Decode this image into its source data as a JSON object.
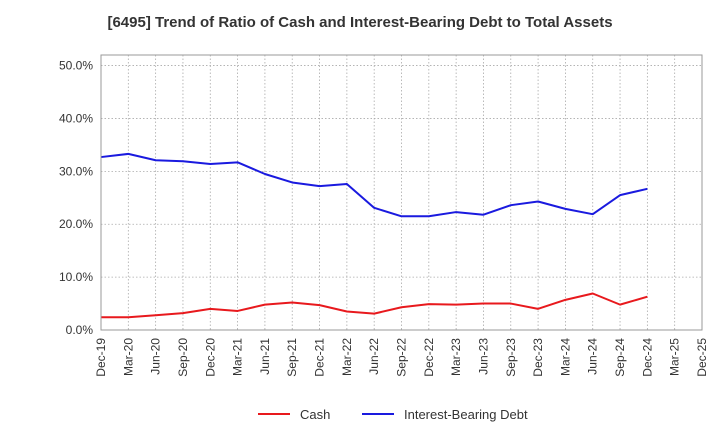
{
  "chart_data": {
    "type": "line",
    "title": "[6495]  Trend of Ratio of Cash and Interest-Bearing Debt to Total Assets",
    "xlabel": "",
    "ylabel": "",
    "ylim": [
      0,
      52
    ],
    "yticks": [
      0,
      10,
      20,
      30,
      40,
      50
    ],
    "ytick_labels": [
      "0.0%",
      "10.0%",
      "20.0%",
      "30.0%",
      "40.0%",
      "50.0%"
    ],
    "categories": [
      "Dec-19",
      "Mar-20",
      "Jun-20",
      "Sep-20",
      "Dec-20",
      "Mar-21",
      "Jun-21",
      "Sep-21",
      "Dec-21",
      "Mar-22",
      "Jun-22",
      "Sep-22",
      "Dec-22",
      "Mar-23",
      "Jun-23",
      "Sep-23",
      "Dec-23",
      "Mar-24",
      "Jun-24",
      "Sep-24",
      "Dec-24",
      "Mar-25",
      "Dec-25"
    ],
    "grid": true,
    "grid_style": "dotted",
    "legend_position": "bottom",
    "series": [
      {
        "name": "Cash",
        "color": "#e8191d",
        "values": [
          2.4,
          2.4,
          2.8,
          3.2,
          4.0,
          3.6,
          4.8,
          5.2,
          4.7,
          3.5,
          3.1,
          4.3,
          4.9,
          4.8,
          5.0,
          5.0,
          4.0,
          5.7,
          6.9,
          4.8,
          6.3,
          null,
          null
        ]
      },
      {
        "name": "Interest-Bearing Debt",
        "color": "#1a1adf",
        "values": [
          32.7,
          33.3,
          32.1,
          31.9,
          31.4,
          31.7,
          29.5,
          27.9,
          27.2,
          27.6,
          23.1,
          21.5,
          21.5,
          22.3,
          21.8,
          23.6,
          24.3,
          22.9,
          21.9,
          25.5,
          26.7,
          null,
          null
        ]
      }
    ]
  }
}
